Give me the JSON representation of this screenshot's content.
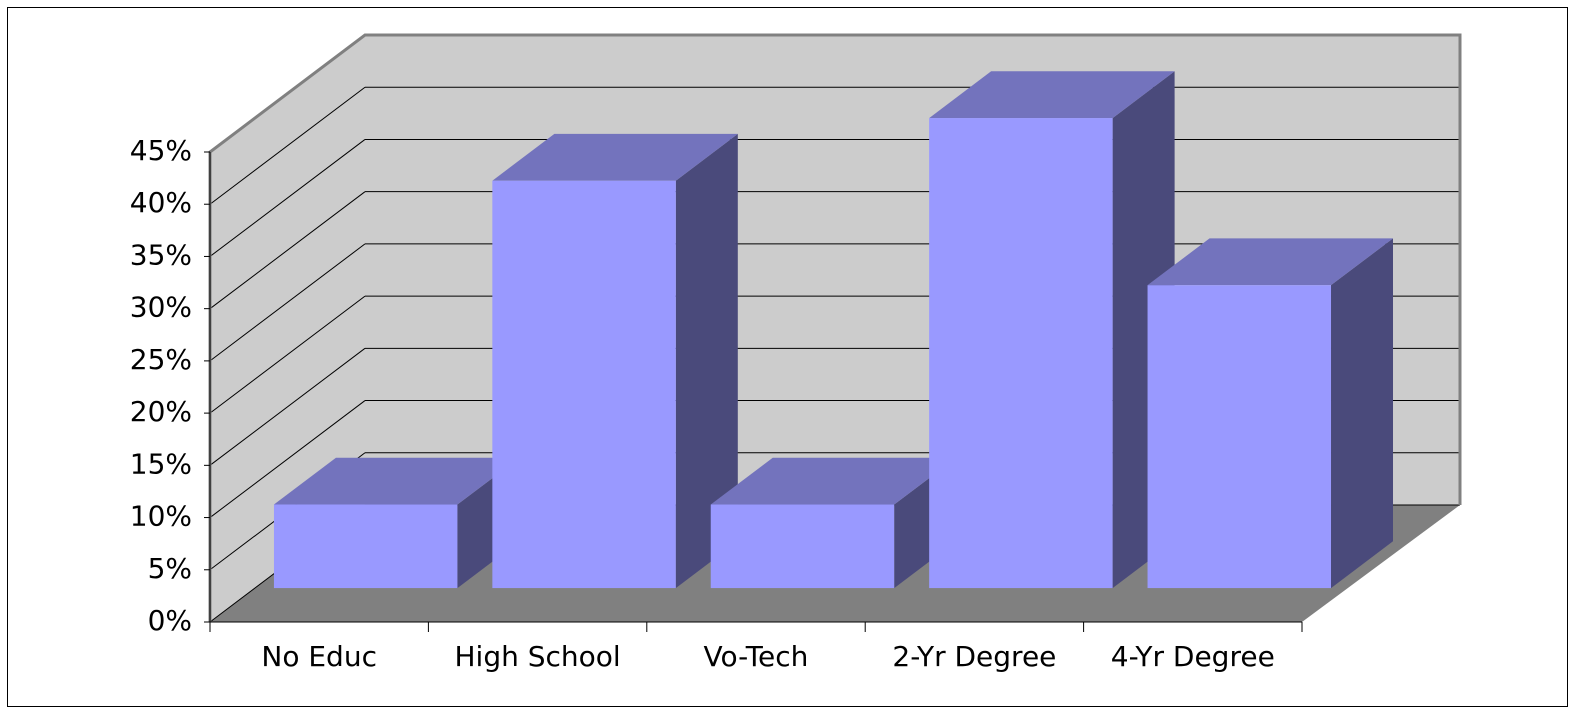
{
  "chart_data": {
    "type": "bar3d",
    "categories": [
      "No Educ",
      "High School",
      "Vo-Tech",
      "2-Yr Degree",
      "4-Yr Degree"
    ],
    "values": [
      8,
      39,
      8,
      45,
      29
    ],
    "color": "#9999ff",
    "ylim": [
      0,
      45
    ],
    "yticks": [
      {
        "value": 0,
        "label": "0%"
      },
      {
        "value": 5,
        "label": "5%"
      },
      {
        "value": 10,
        "label": "10%"
      },
      {
        "value": 15,
        "label": "15%"
      },
      {
        "value": 20,
        "label": "20%"
      },
      {
        "value": 25,
        "label": "25%"
      },
      {
        "value": 30,
        "label": "30%"
      },
      {
        "value": 35,
        "label": "35%"
      },
      {
        "value": 40,
        "label": "40%"
      },
      {
        "value": 45,
        "label": "45%"
      }
    ],
    "grid": true
  }
}
